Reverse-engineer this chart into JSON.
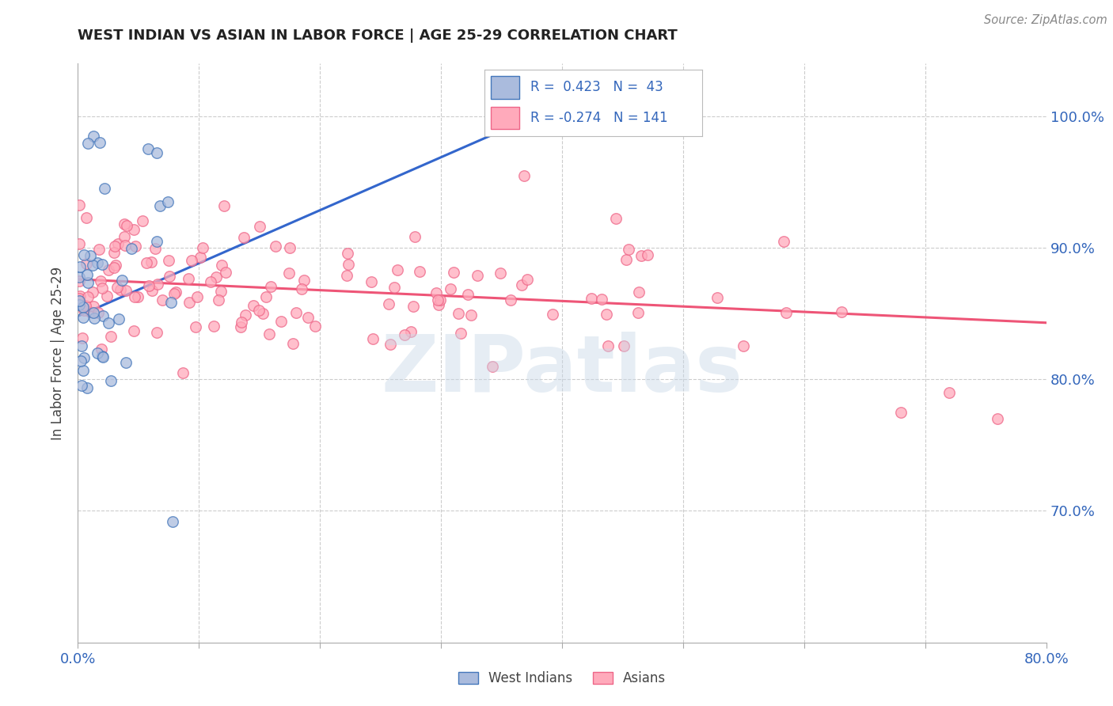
{
  "title": "WEST INDIAN VS ASIAN IN LABOR FORCE | AGE 25-29 CORRELATION CHART",
  "source": "Source: ZipAtlas.com",
  "ylabel": "In Labor Force | Age 25-29",
  "xlim": [
    0.0,
    0.8
  ],
  "ylim": [
    0.6,
    1.04
  ],
  "ytick_positions": [
    0.7,
    0.8,
    0.9,
    1.0
  ],
  "yticklabels": [
    "70.0%",
    "80.0%",
    "90.0%",
    "100.0%"
  ],
  "xtick_positions": [
    0.0,
    0.1,
    0.2,
    0.3,
    0.4,
    0.5,
    0.6,
    0.7,
    0.8
  ],
  "xticklabels": [
    "0.0%",
    "",
    "",
    "",
    "",
    "",
    "",
    "",
    "80.0%"
  ],
  "blue_fill": "#aabbdd",
  "blue_edge": "#4477bb",
  "pink_fill": "#ffaabb",
  "pink_edge": "#ee6688",
  "blue_line_color": "#3366cc",
  "pink_line_color": "#ee5577",
  "axis_color": "#3366bb",
  "title_color": "#222222",
  "grid_color": "#cccccc",
  "background_color": "#ffffff",
  "west_indians_label": "West Indians",
  "asians_label": "Asians",
  "watermark_text": "ZIPatlas",
  "blue_trendline_x": [
    0.0,
    0.385
  ],
  "blue_trendline_y": [
    0.848,
    1.003
  ],
  "pink_trendline_x": [
    0.0,
    0.8
  ],
  "pink_trendline_y": [
    0.876,
    0.843
  ]
}
